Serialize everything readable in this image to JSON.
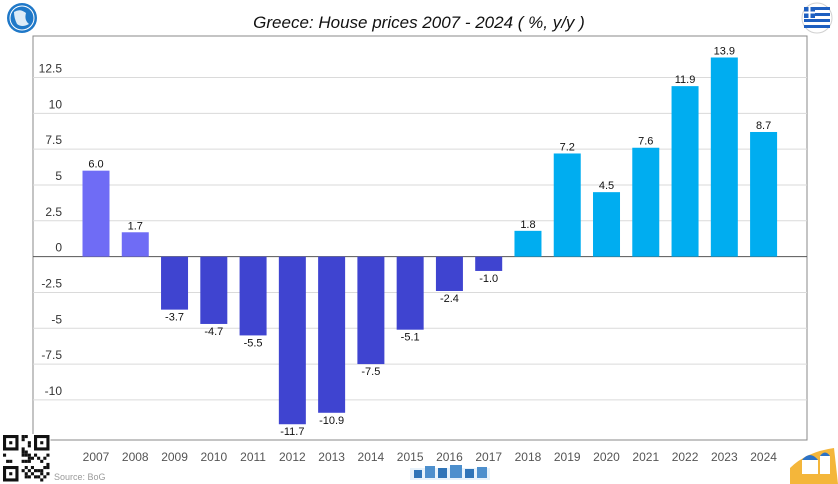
{
  "title": "Greece: House prices 2007 - 2024 ( %, y/y )",
  "source": "Source: BoG",
  "colors": {
    "early": "#6f6cf5",
    "decline": "#3f44d0",
    "recovery": "#00adf0",
    "grid": "#dadada",
    "axis": "#555555"
  },
  "icons": [
    "globe-icon",
    "greek-flag-icon",
    "qr-code-icon",
    "skyline-icon",
    "santorini-icon"
  ],
  "chart_data": {
    "type": "bar",
    "title": "Greece: House prices 2007 - 2024 ( %, y/y )",
    "xlabel": "",
    "ylabel": "",
    "categories": [
      "2007",
      "2008",
      "2009",
      "2010",
      "2011",
      "2012",
      "2013",
      "2014",
      "2015",
      "2016",
      "2017",
      "2018",
      "2019",
      "2020",
      "2021",
      "2022",
      "2023",
      "2024"
    ],
    "values": [
      6.0,
      1.7,
      -3.7,
      -4.7,
      -5.5,
      -11.7,
      -10.9,
      -7.5,
      -5.1,
      -2.4,
      -1.0,
      1.8,
      7.2,
      4.5,
      7.6,
      11.9,
      13.9,
      8.7
    ],
    "data_labels": [
      "6.0",
      "1.7",
      "-3.7",
      "-4.7",
      "-5.5",
      "-11.7",
      "-10.9",
      "-7.5",
      "-5.1",
      "-2.4",
      "-1.0",
      "1.8",
      "7.2",
      "4.5",
      "7.6",
      "11.9",
      "13.9",
      "8.7"
    ],
    "bar_colors": [
      "#6f6cf5",
      "#6f6cf5",
      "#3f44d0",
      "#3f44d0",
      "#3f44d0",
      "#3f44d0",
      "#3f44d0",
      "#3f44d0",
      "#3f44d0",
      "#3f44d0",
      "#3f44d0",
      "#00adf0",
      "#00adf0",
      "#00adf0",
      "#00adf0",
      "#00adf0",
      "#00adf0",
      "#00adf0"
    ],
    "yticks": [
      12.5,
      10,
      7.5,
      5,
      2.5,
      0,
      -2.5,
      -5,
      -7.5,
      -10
    ],
    "ytick_labels": [
      "12.5",
      "10",
      "7.5",
      "5",
      "2.5",
      "0",
      "-2.5",
      "-5",
      "-7.5",
      "-10"
    ],
    "ylim": [
      -12.8,
      15.4
    ],
    "grid": true,
    "legend": "none"
  }
}
